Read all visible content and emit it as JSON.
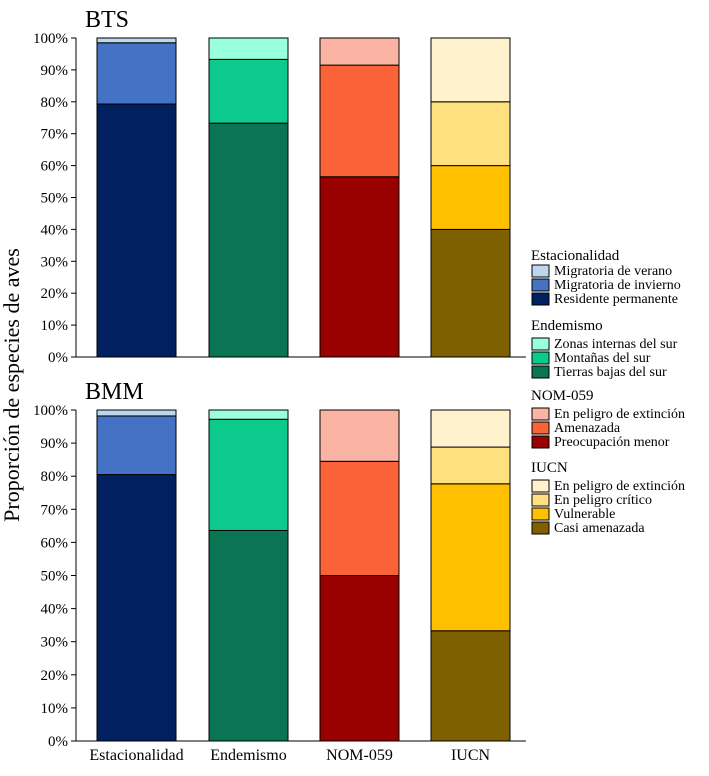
{
  "ylabel": "Proporción de especies de aves",
  "categories": [
    "Estacionalidad",
    "Endemismo",
    "NOM-059",
    "IUCN"
  ],
  "colors": {
    "Migratoria de verano": "#bdd7ee",
    "Migratoria de invierno": "#4472c4",
    "Residente permanente": "#002060",
    "Zonas internas del sur": "#99ffdd",
    "Montañas del sur": "#0cc98c",
    "Tierras bajas del sur": "#0a7552",
    "En peligro de extinción (NOM)": "#fbb3a3",
    "Amenazada": "#fa6238",
    "Preocupación menor": "#990000",
    "En peligro de extinción (IUCN)": "#fff2cc",
    "En peligro crítico": "#ffe080",
    "Vulnerable": "#ffc000",
    "Casi amenazada": "#7f6000"
  },
  "legend": [
    {
      "title": "Estacionalidad",
      "items": [
        {
          "label": "Migratoria de verano",
          "color_key": "Migratoria de verano"
        },
        {
          "label": "Migratoria de invierno",
          "color_key": "Migratoria de invierno"
        },
        {
          "label": "Residente permanente",
          "color_key": "Residente permanente"
        }
      ]
    },
    {
      "title": "Endemismo",
      "items": [
        {
          "label": "Zonas internas del sur",
          "color_key": "Zonas internas del sur"
        },
        {
          "label": "Montañas del sur",
          "color_key": "Montañas del sur"
        },
        {
          "label": "Tierras bajas del sur",
          "color_key": "Tierras bajas del sur"
        }
      ]
    },
    {
      "title": "NOM-059",
      "items": [
        {
          "label": "En peligro de extinción",
          "color_key": "En peligro de extinción (NOM)"
        },
        {
          "label": "Amenazada",
          "color_key": "Amenazada"
        },
        {
          "label": "Preocupación menor",
          "color_key": "Preocupación menor"
        }
      ]
    },
    {
      "title": "IUCN",
      "items": [
        {
          "label": "En peligro de extinción",
          "color_key": "En peligro de extinción (IUCN)"
        },
        {
          "label": "En peligro crítico",
          "color_key": "En peligro crítico"
        },
        {
          "label": "Vulnerable",
          "color_key": "Vulnerable"
        },
        {
          "label": "Casi amenazada",
          "color_key": "Casi amenazada"
        }
      ]
    }
  ],
  "chart_data": [
    {
      "type": "bar",
      "stacked": true,
      "title": "BTS",
      "ylabel": "Proporción de especies de aves",
      "ylim": [
        0,
        100
      ],
      "yticks": [
        "0%",
        "10%",
        "20%",
        "30%",
        "40%",
        "50%",
        "60%",
        "70%",
        "80%",
        "90%",
        "100%"
      ],
      "categories": [
        "Estacionalidad",
        "Endemismo",
        "NOM-059",
        "IUCN"
      ],
      "bars": [
        {
          "category": "Estacionalidad",
          "segments": [
            {
              "name": "Residente permanente",
              "value": 79.3
            },
            {
              "name": "Migratoria de invierno",
              "value": 19.2
            },
            {
              "name": "Migratoria de verano",
              "value": 1.5
            }
          ]
        },
        {
          "category": "Endemismo",
          "segments": [
            {
              "name": "Tierras bajas del sur",
              "value": 73.3
            },
            {
              "name": "Montañas del sur",
              "value": 20.0
            },
            {
              "name": "Zonas internas del sur",
              "value": 6.7
            }
          ]
        },
        {
          "category": "NOM-059",
          "segments": [
            {
              "name": "Preocupación menor",
              "value": 56.5
            },
            {
              "name": "Amenazada",
              "value": 35.0
            },
            {
              "name": "En peligro de extinción (NOM)",
              "value": 8.5
            }
          ]
        },
        {
          "category": "IUCN",
          "segments": [
            {
              "name": "Casi amenazada",
              "value": 40.0
            },
            {
              "name": "Vulnerable",
              "value": 20.0
            },
            {
              "name": "En peligro crítico",
              "value": 20.0
            },
            {
              "name": "En peligro de extinción (IUCN)",
              "value": 20.0
            }
          ]
        }
      ]
    },
    {
      "type": "bar",
      "stacked": true,
      "title": "BMM",
      "ylabel": "Proporción de especies de aves",
      "ylim": [
        0,
        100
      ],
      "yticks": [
        "0%",
        "10%",
        "20%",
        "30%",
        "40%",
        "50%",
        "60%",
        "70%",
        "80%",
        "90%",
        "100%"
      ],
      "categories": [
        "Estacionalidad",
        "Endemismo",
        "NOM-059",
        "IUCN"
      ],
      "bars": [
        {
          "category": "Estacionalidad",
          "segments": [
            {
              "name": "Residente permanente",
              "value": 80.5
            },
            {
              "name": "Migratoria de invierno",
              "value": 17.7
            },
            {
              "name": "Migratoria de verano",
              "value": 1.8
            }
          ]
        },
        {
          "category": "Endemismo",
          "segments": [
            {
              "name": "Tierras bajas del sur",
              "value": 63.6
            },
            {
              "name": "Montañas del sur",
              "value": 33.6
            },
            {
              "name": "Zonas internas del sur",
              "value": 2.8
            }
          ]
        },
        {
          "category": "NOM-059",
          "segments": [
            {
              "name": "Preocupación menor",
              "value": 50.0
            },
            {
              "name": "Amenazada",
              "value": 34.5
            },
            {
              "name": "En peligro de extinción (NOM)",
              "value": 15.5
            }
          ]
        },
        {
          "category": "IUCN",
          "segments": [
            {
              "name": "Casi amenazada",
              "value": 33.3
            },
            {
              "name": "Vulnerable",
              "value": 44.4
            },
            {
              "name": "En peligro crítico",
              "value": 11.1
            },
            {
              "name": "En peligro de extinción (IUCN)",
              "value": 11.2
            }
          ]
        }
      ]
    }
  ]
}
